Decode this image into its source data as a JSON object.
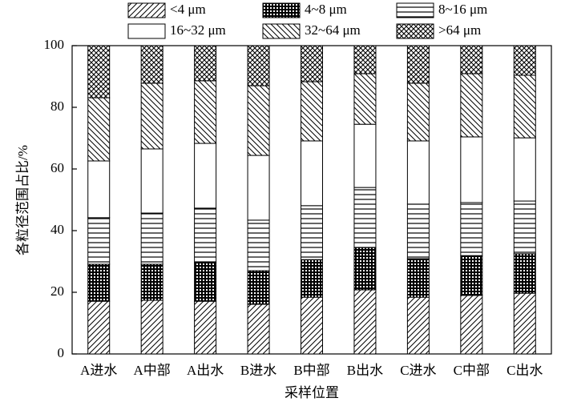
{
  "chart_data": {
    "type": "stacked-bar",
    "y_label": "各粒径范围占比/%",
    "x_label": "采样位置",
    "categories": [
      "A进水",
      "A中部",
      "A出水",
      "B进水",
      "B中部",
      "B出水",
      "C进水",
      "C中部",
      "C出水"
    ],
    "series": [
      {
        "name": "<4 μm",
        "color": "#000000",
        "pattern": "diag-right",
        "values": [
          17.1,
          17.4,
          17.1,
          16.1,
          18.4,
          20.8,
          18.4,
          19.0,
          19.7
        ]
      },
      {
        "name": "4~8 μm",
        "color": "#000000",
        "pattern": "grid",
        "values": [
          12.0,
          11.7,
          12.5,
          10.9,
          12.2,
          13.7,
          12.5,
          12.9,
          12.8
        ]
      },
      {
        "name": "8~16 μm",
        "color": "#000000",
        "pattern": "horizontal",
        "values": [
          15.1,
          16.6,
          17.7,
          16.4,
          17.5,
          19.5,
          17.7,
          17.2,
          17.1
        ]
      },
      {
        "name": "16~32 μm",
        "color": "#000000",
        "pattern": "none",
        "values": [
          18.4,
          20.8,
          21.0,
          21.0,
          21.0,
          20.5,
          20.5,
          21.3,
          20.5
        ]
      },
      {
        "name": "32~64 μm",
        "color": "#000000",
        "pattern": "diag-left",
        "values": [
          20.5,
          21.3,
          20.3,
          22.6,
          19.2,
          16.4,
          18.7,
          20.5,
          20.3
        ]
      },
      {
        "name": ">64 μm",
        "color": "#000000",
        "pattern": "crosshatch",
        "values": [
          16.9,
          12.2,
          11.4,
          13.0,
          11.7,
          9.1,
          12.2,
          9.1,
          9.6
        ]
      }
    ],
    "ylim": [
      0,
      100
    ],
    "yticks": [
      0,
      20,
      40,
      60,
      80,
      100
    ]
  }
}
